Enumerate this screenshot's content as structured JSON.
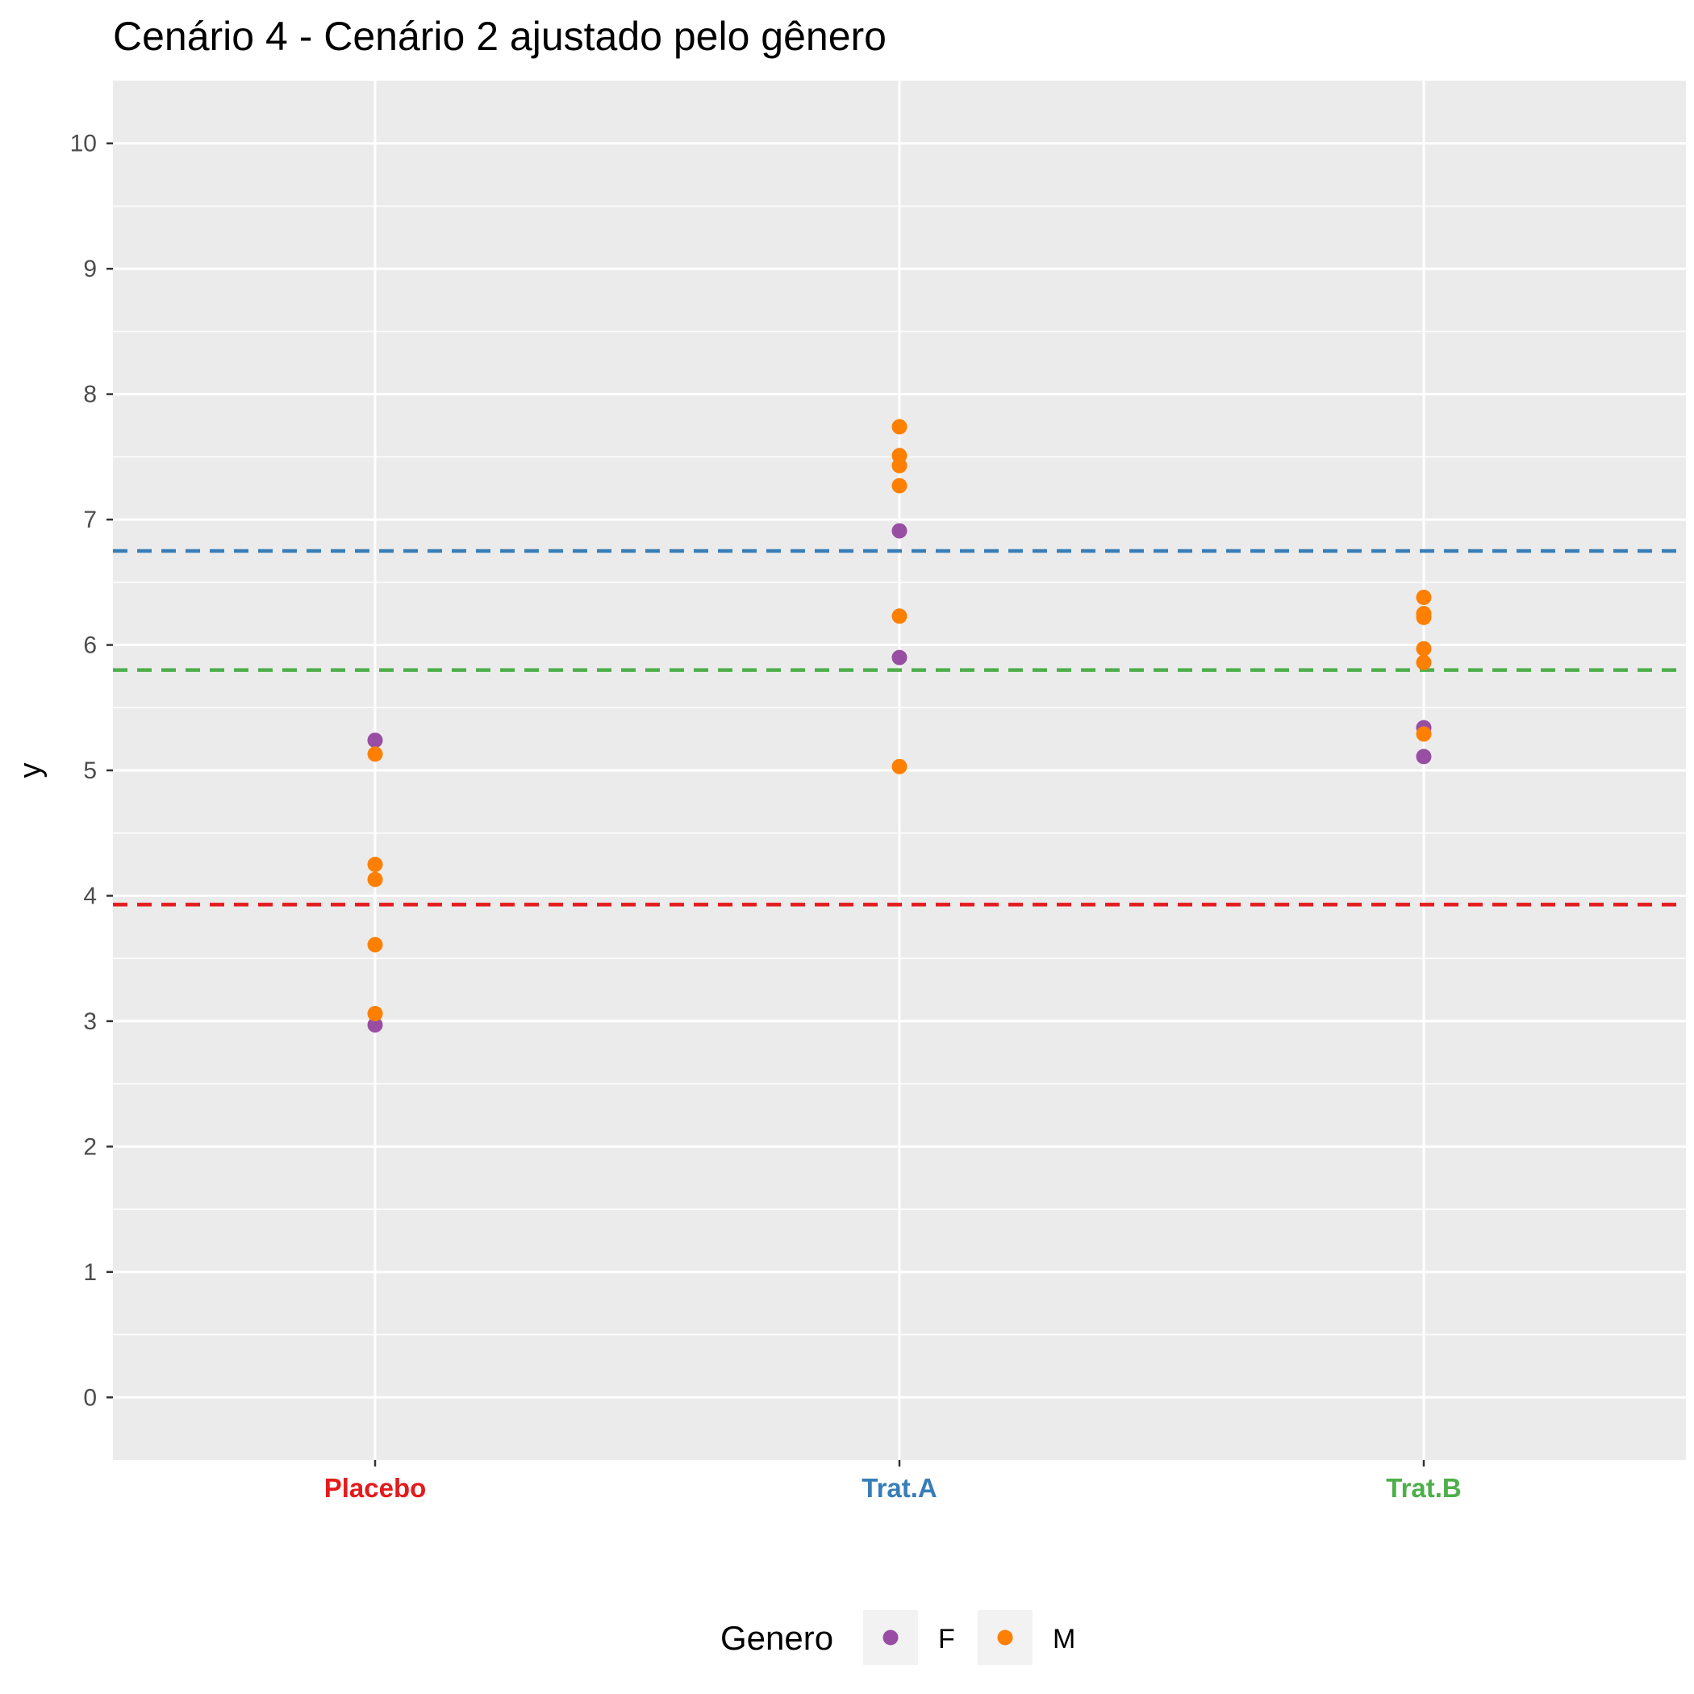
{
  "chart_data": {
    "type": "scatter",
    "title": "Cenário 4 - Cenário 2 ajustado pelo gênero",
    "xlabel": "",
    "ylabel": "y",
    "categories": [
      {
        "label": "Placebo",
        "color": "#E41A1C"
      },
      {
        "label": "Trat.A",
        "color": "#377EB8"
      },
      {
        "label": "Trat.B",
        "color": "#4DAF4A"
      }
    ],
    "y_ticks": [
      0,
      1,
      2,
      3,
      4,
      5,
      6,
      7,
      8,
      9,
      10
    ],
    "ylim": [
      -0.5,
      10.5
    ],
    "grid": true,
    "legend": {
      "title": "Genero",
      "placement": "bottom",
      "entries": [
        {
          "label": "F",
          "color": "#984EA3"
        },
        {
          "label": "M",
          "color": "#FF7F00"
        }
      ]
    },
    "series": [
      {
        "name": "F",
        "color": "#984EA3",
        "points": [
          {
            "x": "Placebo",
            "y": 5.24
          },
          {
            "x": "Placebo",
            "y": 2.97
          },
          {
            "x": "Trat.A",
            "y": 6.91
          },
          {
            "x": "Trat.A",
            "y": 5.9
          },
          {
            "x": "Trat.B",
            "y": 5.34
          },
          {
            "x": "Trat.B",
            "y": 5.11
          }
        ]
      },
      {
        "name": "M",
        "color": "#FF7F00",
        "points": [
          {
            "x": "Placebo",
            "y": 5.13
          },
          {
            "x": "Placebo",
            "y": 4.25
          },
          {
            "x": "Placebo",
            "y": 4.13
          },
          {
            "x": "Placebo",
            "y": 3.61
          },
          {
            "x": "Placebo",
            "y": 3.06
          },
          {
            "x": "Trat.A",
            "y": 7.74
          },
          {
            "x": "Trat.A",
            "y": 7.51
          },
          {
            "x": "Trat.A",
            "y": 7.43
          },
          {
            "x": "Trat.A",
            "y": 7.27
          },
          {
            "x": "Trat.A",
            "y": 6.23
          },
          {
            "x": "Trat.A",
            "y": 5.03
          },
          {
            "x": "Trat.B",
            "y": 6.38
          },
          {
            "x": "Trat.B",
            "y": 6.25
          },
          {
            "x": "Trat.B",
            "y": 6.22
          },
          {
            "x": "Trat.B",
            "y": 5.97
          },
          {
            "x": "Trat.B",
            "y": 5.86
          },
          {
            "x": "Trat.B",
            "y": 5.29
          }
        ]
      }
    ],
    "reference_lines": [
      {
        "category": "Placebo",
        "y": 3.93,
        "color": "#E41A1C",
        "style": "dashed"
      },
      {
        "category": "Trat.A",
        "y": 6.75,
        "color": "#377EB8",
        "style": "dashed"
      },
      {
        "category": "Trat.B",
        "y": 5.8,
        "color": "#4DAF4A",
        "style": "dashed"
      }
    ]
  }
}
